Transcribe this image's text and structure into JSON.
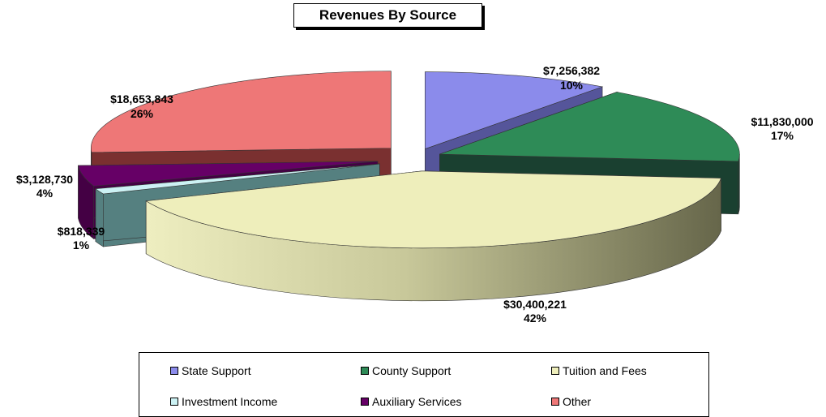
{
  "chart_data": {
    "type": "pie",
    "title": "Revenues By Source",
    "slices": [
      {
        "name": "State Support",
        "value": 7256382,
        "label": "$7,256,382",
        "percent": "10%",
        "color": "#8B8BEB"
      },
      {
        "name": "County Support",
        "value": 11830000,
        "label": "$11,830,000",
        "percent": "17%",
        "color": "#2E8B57"
      },
      {
        "name": "Tuition and Fees",
        "value": 30400221,
        "label": "$30,400,221",
        "percent": "42%",
        "color": "#EEEEBB"
      },
      {
        "name": "Investment Income",
        "value": 818339,
        "label": "$818,339",
        "percent": "1%",
        "color": "#CCF2F4"
      },
      {
        "name": "Auxiliary Services",
        "value": 3128730,
        "label": "$3,128,730",
        "percent": "4%",
        "color": "#660066"
      },
      {
        "name": "Other",
        "value": 18653843,
        "label": "$18,653,843",
        "percent": "26%",
        "color": "#EE7777"
      }
    ],
    "legend_position": "bottom",
    "style": "3d-exploded"
  }
}
